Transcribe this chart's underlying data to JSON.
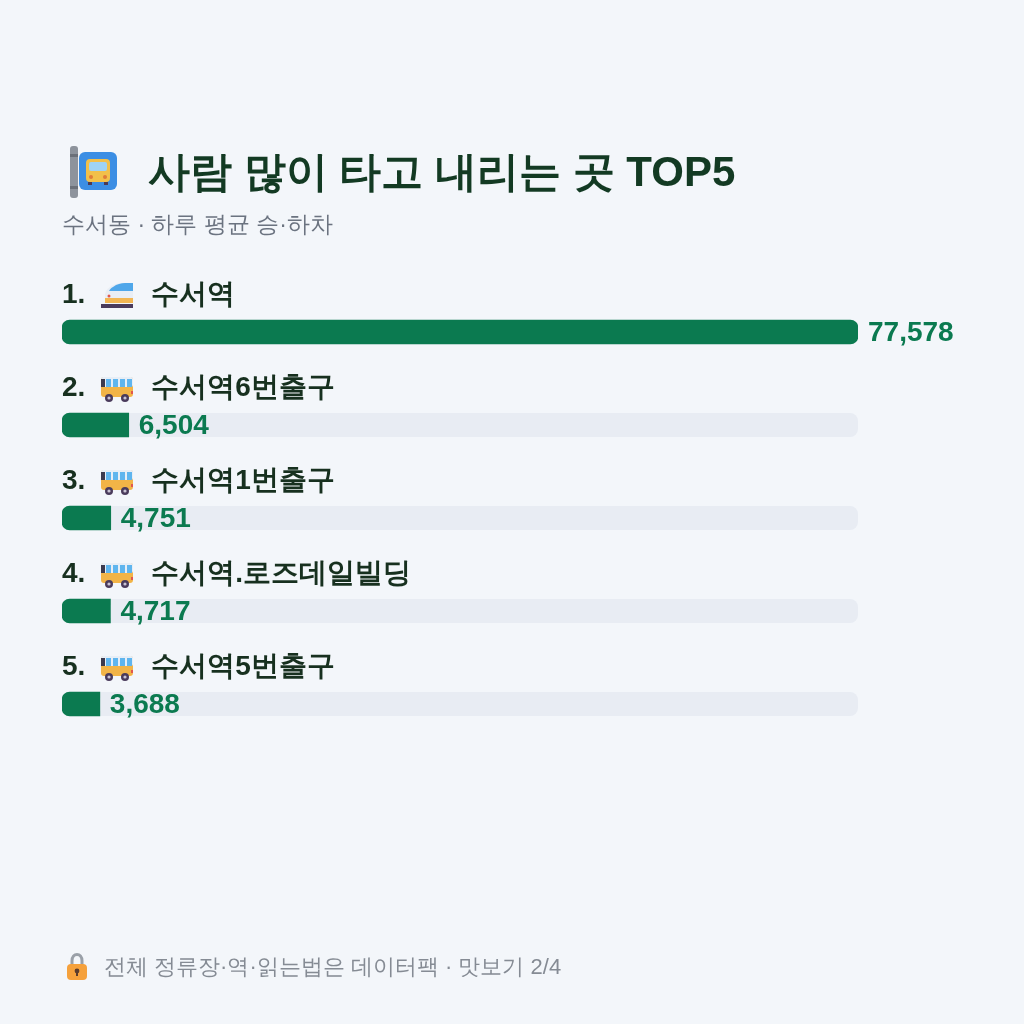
{
  "chart_data": {
    "type": "bar",
    "orientation": "horizontal",
    "title": "사람 많이 타고 내리는 곳 TOP5",
    "subtitle": "수서동 · 하루 평균 승·하차",
    "categories": [
      "1. 수서역",
      "2. 수서역6번출구",
      "3. 수서역1번출구",
      "4. 수서역.로즈데일빌딩",
      "5. 수서역5번출구"
    ],
    "values": [
      77578,
      6504,
      4751,
      4717,
      3688
    ],
    "value_labels": [
      "77,578",
      "6,504",
      "4,751",
      "4,717",
      "3,688"
    ],
    "color": "#0b7a50",
    "tick_labels": "y",
    "annotations": [
      "전체 정류장·역·읽는법은 데이터팩 · 맛보기 2/4"
    ]
  }
}
